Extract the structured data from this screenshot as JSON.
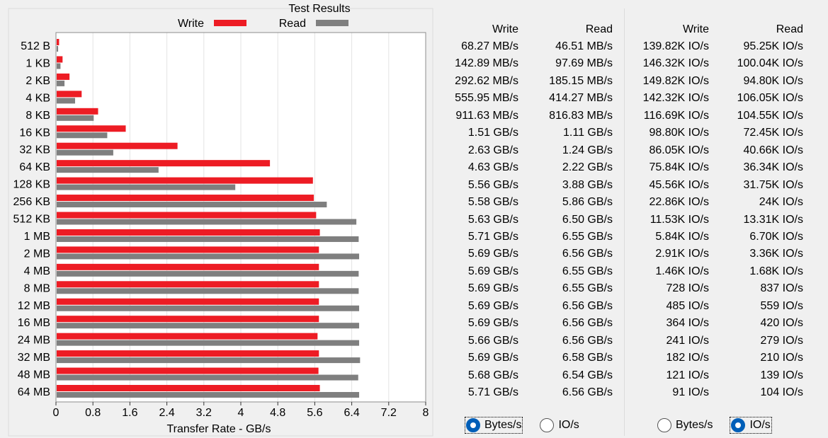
{
  "chart_data": {
    "type": "bar",
    "orientation": "horizontal",
    "title": "Test Results",
    "xlabel": "Transfer Rate - GB/s",
    "xlim": [
      0,
      8
    ],
    "xticks": [
      "0",
      "0.8",
      "1.6",
      "2.4",
      "3.2",
      "4",
      "4.8",
      "5.6",
      "6.4",
      "7.2",
      "8"
    ],
    "grid": true,
    "legend_position": "top",
    "categories": [
      "512 B",
      "1 KB",
      "2 KB",
      "4 KB",
      "8 KB",
      "16 KB",
      "32 KB",
      "64 KB",
      "128 KB",
      "256 KB",
      "512 KB",
      "1 MB",
      "2 MB",
      "4 MB",
      "8 MB",
      "12 MB",
      "16 MB",
      "24 MB",
      "32 MB",
      "48 MB",
      "64 MB"
    ],
    "series": [
      {
        "name": "Write",
        "color": "#ed1c24",
        "values": [
          0.068,
          0.143,
          0.293,
          0.556,
          0.912,
          1.51,
          2.63,
          4.63,
          5.56,
          5.58,
          5.63,
          5.71,
          5.69,
          5.69,
          5.69,
          5.69,
          5.69,
          5.66,
          5.69,
          5.68,
          5.71
        ]
      },
      {
        "name": "Read",
        "color": "#7f7f7f",
        "values": [
          0.047,
          0.098,
          0.185,
          0.414,
          0.817,
          1.11,
          1.24,
          2.22,
          3.88,
          5.86,
          6.5,
          6.55,
          6.56,
          6.55,
          6.55,
          6.56,
          6.56,
          6.56,
          6.58,
          6.54,
          6.56
        ]
      }
    ]
  },
  "table": {
    "write_header": "Write",
    "read_header": "Read",
    "rows": [
      {
        "bw": "68.27 MB/s",
        "br": "46.51 MB/s",
        "iw": "139.82K IO/s",
        "ir": "95.25K IO/s"
      },
      {
        "bw": "142.89 MB/s",
        "br": "97.69 MB/s",
        "iw": "146.32K IO/s",
        "ir": "100.04K IO/s"
      },
      {
        "bw": "292.62 MB/s",
        "br": "185.15 MB/s",
        "iw": "149.82K IO/s",
        "ir": "94.80K IO/s"
      },
      {
        "bw": "555.95 MB/s",
        "br": "414.27 MB/s",
        "iw": "142.32K IO/s",
        "ir": "106.05K IO/s"
      },
      {
        "bw": "911.63 MB/s",
        "br": "816.83 MB/s",
        "iw": "116.69K IO/s",
        "ir": "104.55K IO/s"
      },
      {
        "bw": "1.51 GB/s",
        "br": "1.11 GB/s",
        "iw": "98.80K IO/s",
        "ir": "72.45K IO/s"
      },
      {
        "bw": "2.63 GB/s",
        "br": "1.24 GB/s",
        "iw": "86.05K IO/s",
        "ir": "40.66K IO/s"
      },
      {
        "bw": "4.63 GB/s",
        "br": "2.22 GB/s",
        "iw": "75.84K IO/s",
        "ir": "36.34K IO/s"
      },
      {
        "bw": "5.56 GB/s",
        "br": "3.88 GB/s",
        "iw": "45.56K IO/s",
        "ir": "31.75K IO/s"
      },
      {
        "bw": "5.58 GB/s",
        "br": "5.86 GB/s",
        "iw": "22.86K IO/s",
        "ir": "24K IO/s"
      },
      {
        "bw": "5.63 GB/s",
        "br": "6.50 GB/s",
        "iw": "11.53K IO/s",
        "ir": "13.31K IO/s"
      },
      {
        "bw": "5.71 GB/s",
        "br": "6.55 GB/s",
        "iw": "5.84K IO/s",
        "ir": "6.70K IO/s"
      },
      {
        "bw": "5.69 GB/s",
        "br": "6.56 GB/s",
        "iw": "2.91K IO/s",
        "ir": "3.36K IO/s"
      },
      {
        "bw": "5.69 GB/s",
        "br": "6.55 GB/s",
        "iw": "1.46K IO/s",
        "ir": "1.68K IO/s"
      },
      {
        "bw": "5.69 GB/s",
        "br": "6.55 GB/s",
        "iw": "728 IO/s",
        "ir": "837 IO/s"
      },
      {
        "bw": "5.69 GB/s",
        "br": "6.56 GB/s",
        "iw": "485 IO/s",
        "ir": "559 IO/s"
      },
      {
        "bw": "5.69 GB/s",
        "br": "6.56 GB/s",
        "iw": "364 IO/s",
        "ir": "420 IO/s"
      },
      {
        "bw": "5.66 GB/s",
        "br": "6.56 GB/s",
        "iw": "241 IO/s",
        "ir": "279 IO/s"
      },
      {
        "bw": "5.69 GB/s",
        "br": "6.58 GB/s",
        "iw": "182 IO/s",
        "ir": "210 IO/s"
      },
      {
        "bw": "5.68 GB/s",
        "br": "6.54 GB/s",
        "iw": "121 IO/s",
        "ir": "139 IO/s"
      },
      {
        "bw": "5.71 GB/s",
        "br": "6.56 GB/s",
        "iw": "91 IO/s",
        "ir": "104 IO/s"
      }
    ]
  },
  "display_left": {
    "options": [
      {
        "label": "Bytes/s",
        "checked": true
      },
      {
        "label": "IO/s",
        "checked": false
      }
    ]
  },
  "display_right": {
    "options": [
      {
        "label": "Bytes/s",
        "checked": false
      },
      {
        "label": "IO/s",
        "checked": true
      }
    ]
  }
}
